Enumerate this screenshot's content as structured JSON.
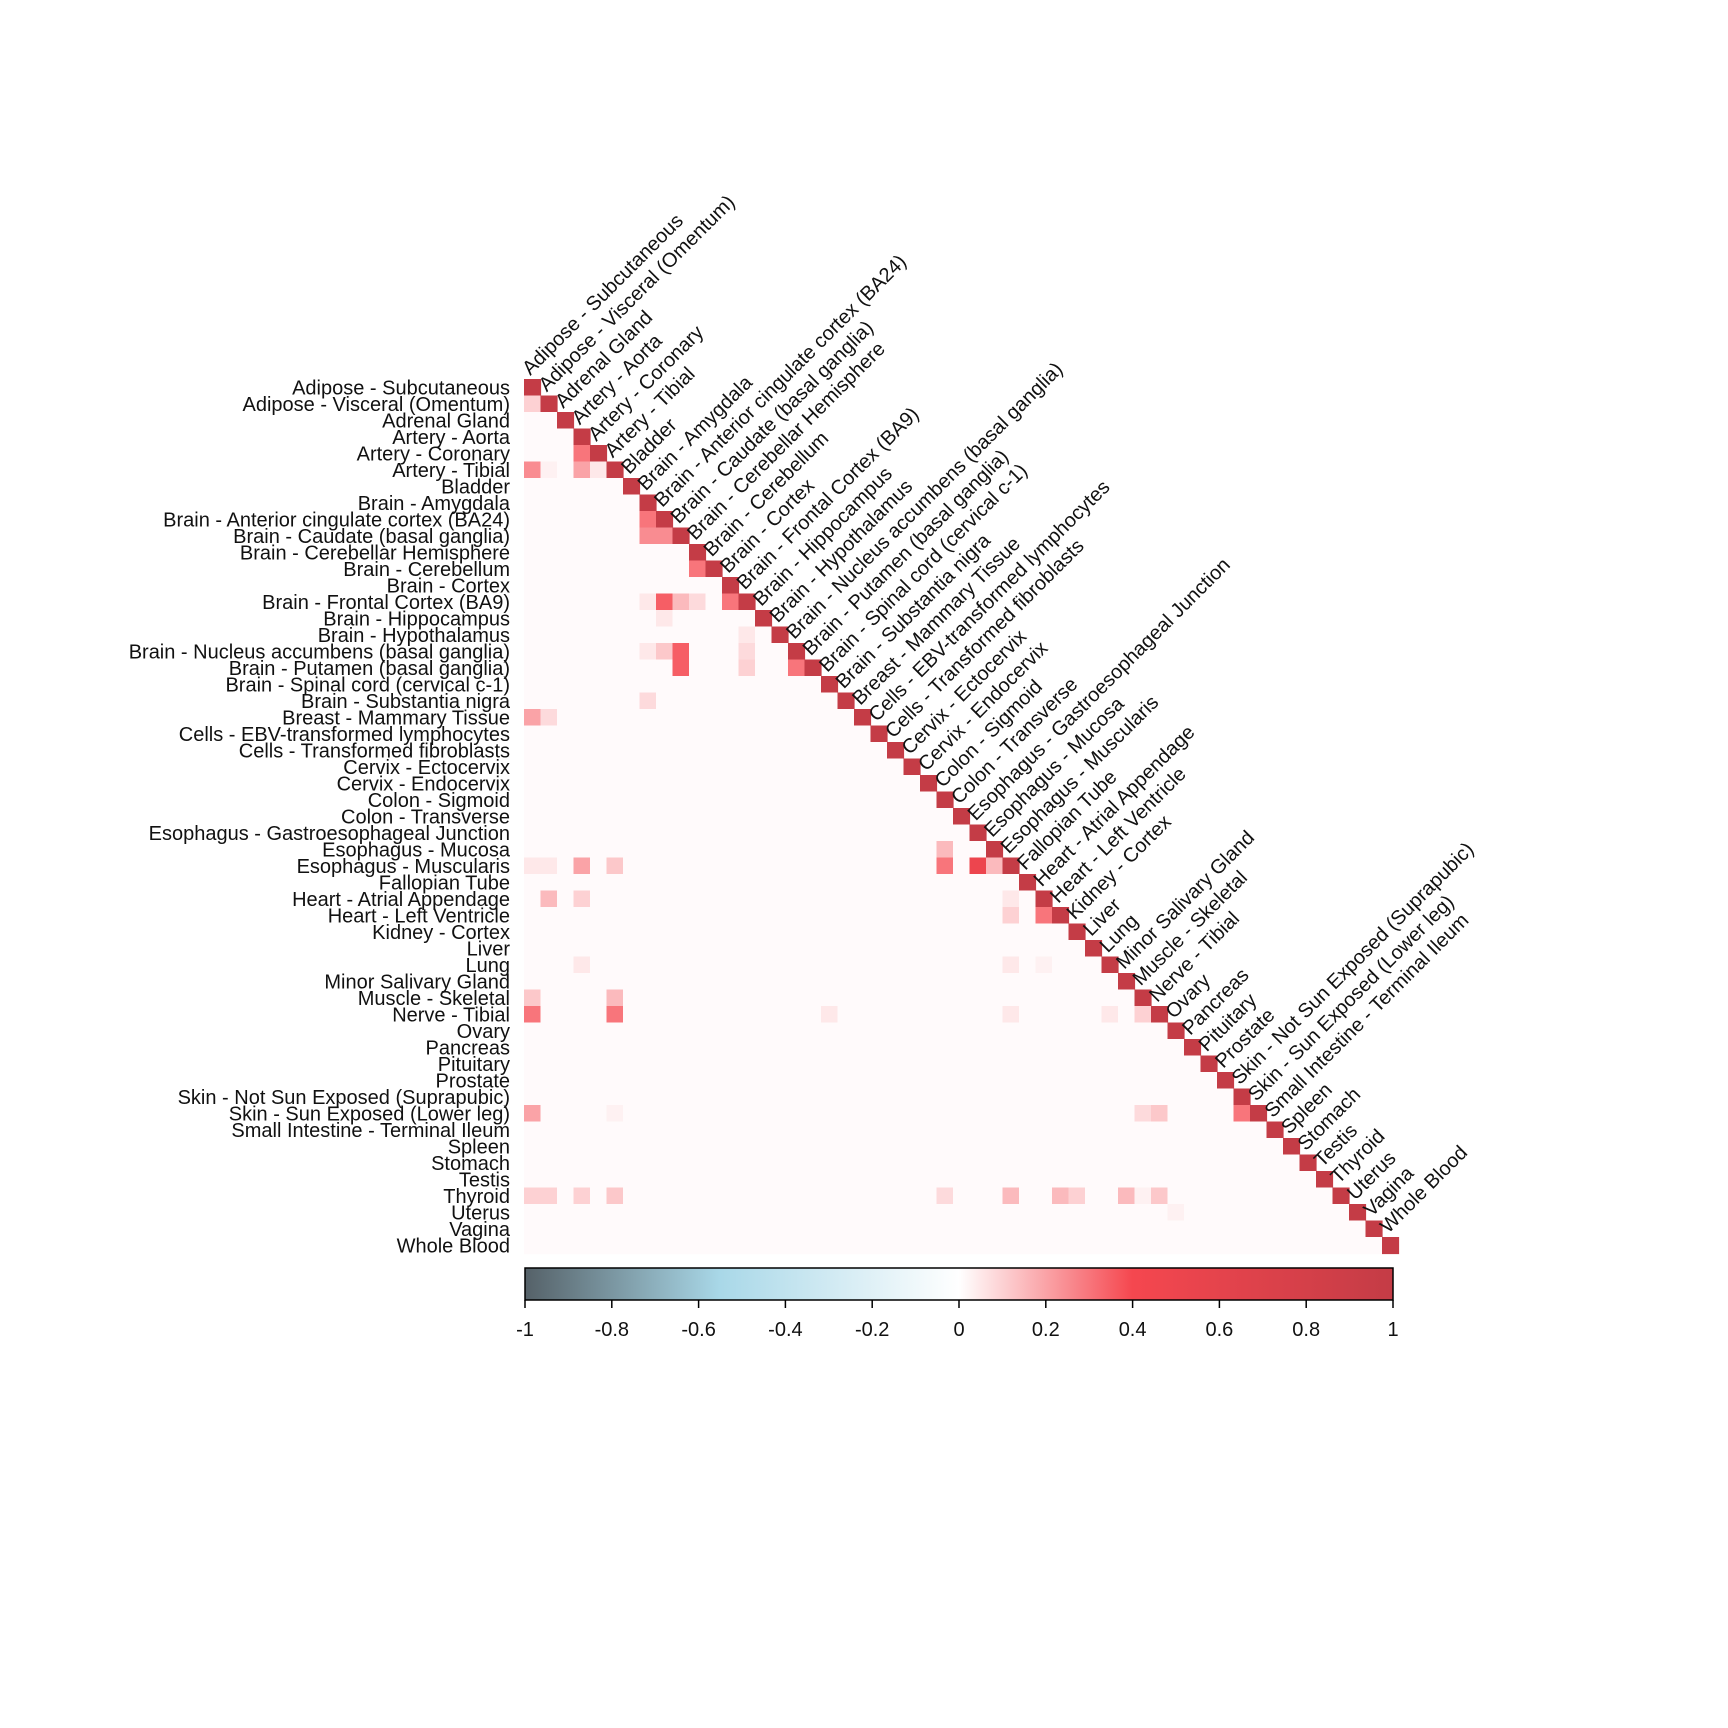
{
  "chart_data": {
    "type": "heatmap",
    "title": "",
    "shape": "lower-triangle",
    "labels": [
      "Adipose - Subcutaneous",
      "Adipose - Visceral (Omentum)",
      "Adrenal Gland",
      "Artery - Aorta",
      "Artery - Coronary",
      "Artery - Tibial",
      "Bladder",
      "Brain - Amygdala",
      "Brain - Anterior cingulate cortex (BA24)",
      "Brain - Caudate (basal ganglia)",
      "Brain - Cerebellar Hemisphere",
      "Brain - Cerebellum",
      "Brain - Cortex",
      "Brain - Frontal Cortex (BA9)",
      "Brain - Hippocampus",
      "Brain - Hypothalamus",
      "Brain - Nucleus accumbens (basal ganglia)",
      "Brain - Putamen (basal ganglia)",
      "Brain - Spinal cord (cervical c-1)",
      "Brain - Substantia nigra",
      "Breast - Mammary Tissue",
      "Cells - EBV-transformed lymphocytes",
      "Cells - Transformed fibroblasts",
      "Cervix - Ectocervix",
      "Cervix - Endocervix",
      "Colon - Sigmoid",
      "Colon - Transverse",
      "Esophagus - Gastroesophageal Junction",
      "Esophagus - Mucosa",
      "Esophagus - Muscularis",
      "Fallopian Tube",
      "Heart - Atrial Appendage",
      "Heart - Left Ventricle",
      "Kidney - Cortex",
      "Liver",
      "Lung",
      "Minor Salivary Gland",
      "Muscle - Skeletal",
      "Nerve - Tibial",
      "Ovary",
      "Pancreas",
      "Pituitary",
      "Prostate",
      "Skin - Not Sun Exposed (Suprapubic)",
      "Skin - Sun Exposed (Lower leg)",
      "Small Intestine - Terminal Ileum",
      "Spleen",
      "Stomach",
      "Testis",
      "Thyroid",
      "Uterus",
      "Vagina",
      "Whole Blood"
    ],
    "diagonal_value": 1,
    "default_offdiagonal_value": 0.01,
    "nonzero_cells": [
      {
        "row": "Adipose - Visceral (Omentum)",
        "col": "Adipose - Subcutaneous",
        "value": 0.1
      },
      {
        "row": "Artery - Coronary",
        "col": "Artery - Aorta",
        "value": 0.3
      },
      {
        "row": "Artery - Tibial",
        "col": "Adipose - Subcutaneous",
        "value": 0.25
      },
      {
        "row": "Artery - Tibial",
        "col": "Adipose - Visceral (Omentum)",
        "value": 0.03
      },
      {
        "row": "Artery - Tibial",
        "col": "Artery - Aorta",
        "value": 0.2
      },
      {
        "row": "Artery - Tibial",
        "col": "Artery - Coronary",
        "value": 0.05
      },
      {
        "row": "Brain - Anterior cingulate cortex (BA24)",
        "col": "Brain - Amygdala",
        "value": 0.3
      },
      {
        "row": "Brain - Caudate (basal ganglia)",
        "col": "Brain - Amygdala",
        "value": 0.25
      },
      {
        "row": "Brain - Caudate (basal ganglia)",
        "col": "Brain - Anterior cingulate cortex (BA24)",
        "value": 0.25
      },
      {
        "row": "Brain - Cerebellum",
        "col": "Brain - Cerebellar Hemisphere",
        "value": 0.3
      },
      {
        "row": "Brain - Frontal Cortex (BA9)",
        "col": "Brain - Amygdala",
        "value": 0.05
      },
      {
        "row": "Brain - Frontal Cortex (BA9)",
        "col": "Brain - Anterior cingulate cortex (BA24)",
        "value": 0.35
      },
      {
        "row": "Brain - Frontal Cortex (BA9)",
        "col": "Brain - Caudate (basal ganglia)",
        "value": 0.15
      },
      {
        "row": "Brain - Frontal Cortex (BA9)",
        "col": "Brain - Cerebellar Hemisphere",
        "value": 0.08
      },
      {
        "row": "Brain - Frontal Cortex (BA9)",
        "col": "Brain - Cortex",
        "value": 0.3
      },
      {
        "row": "Brain - Hippocampus",
        "col": "Brain - Anterior cingulate cortex (BA24)",
        "value": 0.05
      },
      {
        "row": "Brain - Hypothalamus",
        "col": "Brain - Frontal Cortex (BA9)",
        "value": 0.05
      },
      {
        "row": "Brain - Nucleus accumbens (basal ganglia)",
        "col": "Brain - Amygdala",
        "value": 0.05
      },
      {
        "row": "Brain - Nucleus accumbens (basal ganglia)",
        "col": "Brain - Anterior cingulate cortex (BA24)",
        "value": 0.12
      },
      {
        "row": "Brain - Nucleus accumbens (basal ganglia)",
        "col": "Brain - Caudate (basal ganglia)",
        "value": 0.35
      },
      {
        "row": "Brain - Nucleus accumbens (basal ganglia)",
        "col": "Brain - Frontal Cortex (BA9)",
        "value": 0.08
      },
      {
        "row": "Brain - Putamen (basal ganglia)",
        "col": "Brain - Caudate (basal ganglia)",
        "value": 0.35
      },
      {
        "row": "Brain - Putamen (basal ganglia)",
        "col": "Brain - Frontal Cortex (BA9)",
        "value": 0.1
      },
      {
        "row": "Brain - Putamen (basal ganglia)",
        "col": "Brain - Nucleus accumbens (basal ganglia)",
        "value": 0.3
      },
      {
        "row": "Brain - Substantia nigra",
        "col": "Brain - Amygdala",
        "value": 0.08
      },
      {
        "row": "Breast - Mammary Tissue",
        "col": "Adipose - Subcutaneous",
        "value": 0.2
      },
      {
        "row": "Breast - Mammary Tissue",
        "col": "Adipose - Visceral (Omentum)",
        "value": 0.08
      },
      {
        "row": "Esophagus - Mucosa",
        "col": "Colon - Sigmoid",
        "value": 0.15
      },
      {
        "row": "Esophagus - Muscularis",
        "col": "Adipose - Subcutaneous",
        "value": 0.05
      },
      {
        "row": "Esophagus - Muscularis",
        "col": "Adipose - Visceral (Omentum)",
        "value": 0.05
      },
      {
        "row": "Esophagus - Muscularis",
        "col": "Artery - Aorta",
        "value": 0.2
      },
      {
        "row": "Esophagus - Muscularis",
        "col": "Artery - Tibial",
        "value": 0.12
      },
      {
        "row": "Esophagus - Muscularis",
        "col": "Colon - Sigmoid",
        "value": 0.3
      },
      {
        "row": "Esophagus - Muscularis",
        "col": "Esophagus - Gastroesophageal Junction",
        "value": 0.5
      },
      {
        "row": "Esophagus - Muscularis",
        "col": "Esophagus - Mucosa",
        "value": 0.15
      },
      {
        "row": "Heart - Atrial Appendage",
        "col": "Adipose - Visceral (Omentum)",
        "value": 0.15
      },
      {
        "row": "Heart - Atrial Appendage",
        "col": "Artery - Aorta",
        "value": 0.1
      },
      {
        "row": "Heart - Atrial Appendage",
        "col": "Esophagus - Muscularis",
        "value": 0.05
      },
      {
        "row": "Heart - Left Ventricle",
        "col": "Esophagus - Muscularis",
        "value": 0.1
      },
      {
        "row": "Heart - Left Ventricle",
        "col": "Heart - Atrial Appendage",
        "value": 0.3
      },
      {
        "row": "Lung",
        "col": "Artery - Aorta",
        "value": 0.05
      },
      {
        "row": "Lung",
        "col": "Esophagus - Muscularis",
        "value": 0.05
      },
      {
        "row": "Lung",
        "col": "Heart - Atrial Appendage",
        "value": 0.03
      },
      {
        "row": "Muscle - Skeletal",
        "col": "Adipose - Subcutaneous",
        "value": 0.12
      },
      {
        "row": "Muscle - Skeletal",
        "col": "Artery - Tibial",
        "value": 0.15
      },
      {
        "row": "Nerve - Tibial",
        "col": "Adipose - Subcutaneous",
        "value": 0.3
      },
      {
        "row": "Nerve - Tibial",
        "col": "Artery - Tibial",
        "value": 0.3
      },
      {
        "row": "Nerve - Tibial",
        "col": "Brain - Spinal cord (cervical c-1)",
        "value": 0.05
      },
      {
        "row": "Nerve - Tibial",
        "col": "Esophagus - Muscularis",
        "value": 0.05
      },
      {
        "row": "Nerve - Tibial",
        "col": "Lung",
        "value": 0.05
      },
      {
        "row": "Nerve - Tibial",
        "col": "Muscle - Skeletal",
        "value": 0.1
      },
      {
        "row": "Skin - Sun Exposed (Lower leg)",
        "col": "Adipose - Subcutaneous",
        "value": 0.2
      },
      {
        "row": "Skin - Sun Exposed (Lower leg)",
        "col": "Artery - Tibial",
        "value": 0.03
      },
      {
        "row": "Skin - Sun Exposed (Lower leg)",
        "col": "Muscle - Skeletal",
        "value": 0.08
      },
      {
        "row": "Skin - Sun Exposed (Lower leg)",
        "col": "Nerve - Tibial",
        "value": 0.12
      },
      {
        "row": "Skin - Sun Exposed (Lower leg)",
        "col": "Skin - Not Sun Exposed (Suprapubic)",
        "value": 0.3
      },
      {
        "row": "Thyroid",
        "col": "Adipose - Subcutaneous",
        "value": 0.1
      },
      {
        "row": "Thyroid",
        "col": "Adipose - Visceral (Omentum)",
        "value": 0.1
      },
      {
        "row": "Thyroid",
        "col": "Artery - Aorta",
        "value": 0.1
      },
      {
        "row": "Thyroid",
        "col": "Artery - Tibial",
        "value": 0.12
      },
      {
        "row": "Thyroid",
        "col": "Colon - Sigmoid",
        "value": 0.08
      },
      {
        "row": "Thyroid",
        "col": "Esophagus - Muscularis",
        "value": 0.15
      },
      {
        "row": "Thyroid",
        "col": "Heart - Left Ventricle",
        "value": 0.15
      },
      {
        "row": "Thyroid",
        "col": "Kidney - Cortex",
        "value": 0.1
      },
      {
        "row": "Thyroid",
        "col": "Minor Salivary Gland",
        "value": 0.15
      },
      {
        "row": "Thyroid",
        "col": "Muscle - Skeletal",
        "value": 0.03
      },
      {
        "row": "Thyroid",
        "col": "Nerve - Tibial",
        "value": 0.12
      },
      {
        "row": "Uterus",
        "col": "Ovary",
        "value": 0.03
      }
    ],
    "colorscale": {
      "range": [
        -1,
        1
      ],
      "stops": [
        {
          "value": -1,
          "color": "#556168"
        },
        {
          "value": -0.55,
          "color": "#a9d8e8"
        },
        {
          "value": 0,
          "color": "#ffffff"
        },
        {
          "value": 0.4,
          "color": "#f5474f"
        },
        {
          "value": 1,
          "color": "#c43c46"
        }
      ],
      "ticks": [
        "-1",
        "-0.8",
        "-0.6",
        "-0.4",
        "-0.2",
        "0",
        "0.2",
        "0.4",
        "0.6",
        "0.8",
        "1"
      ]
    }
  }
}
